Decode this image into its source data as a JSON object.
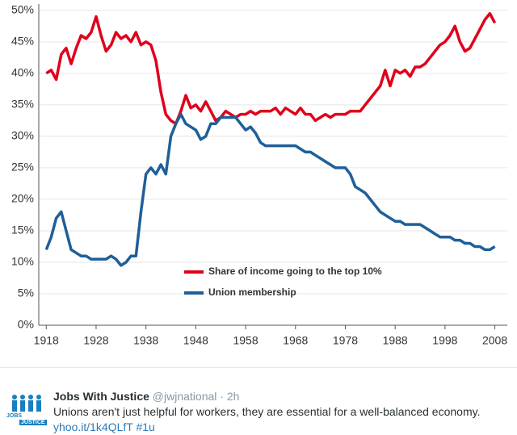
{
  "chart_data": {
    "type": "line",
    "x": [
      1918,
      1919,
      1920,
      1921,
      1922,
      1923,
      1924,
      1925,
      1926,
      1927,
      1928,
      1929,
      1930,
      1931,
      1932,
      1933,
      1934,
      1935,
      1936,
      1937,
      1938,
      1939,
      1940,
      1941,
      1942,
      1943,
      1944,
      1945,
      1946,
      1947,
      1948,
      1949,
      1950,
      1951,
      1952,
      1953,
      1954,
      1955,
      1956,
      1957,
      1958,
      1959,
      1960,
      1961,
      1962,
      1963,
      1964,
      1965,
      1966,
      1967,
      1968,
      1969,
      1970,
      1971,
      1972,
      1973,
      1974,
      1975,
      1976,
      1977,
      1978,
      1979,
      1980,
      1981,
      1982,
      1983,
      1984,
      1985,
      1986,
      1987,
      1988,
      1989,
      1990,
      1991,
      1992,
      1993,
      1994,
      1995,
      1996,
      1997,
      1998,
      1999,
      2000,
      2001,
      2002,
      2003,
      2004,
      2005,
      2006,
      2007,
      2008
    ],
    "series": [
      {
        "name": "Share of income going to the top 10%",
        "color": "#e0001b",
        "values": [
          40,
          40.5,
          39,
          43,
          44,
          41.5,
          44,
          46,
          45.5,
          46.5,
          49,
          46,
          43.5,
          44.5,
          46.5,
          45.5,
          46,
          45,
          46.5,
          44.5,
          45,
          44.5,
          42,
          37,
          33.5,
          32.5,
          32,
          34,
          36.5,
          34.5,
          35,
          34,
          35.5,
          34,
          32.5,
          33,
          34,
          33.5,
          33,
          33.5,
          33.5,
          34,
          33.5,
          34,
          34,
          34,
          34.5,
          33.5,
          34.5,
          34,
          33.5,
          34.5,
          33.5,
          33.5,
          32.5,
          33,
          33.5,
          33,
          33.5,
          33.5,
          33.5,
          34,
          34,
          34,
          35,
          36,
          37,
          38,
          40.5,
          38,
          40.5,
          40,
          40.5,
          39.5,
          41,
          41,
          41.5,
          42.5,
          43.5,
          44.5,
          45,
          46,
          47.5,
          45,
          43.5,
          44,
          45.5,
          47,
          48.5,
          49.5,
          48
        ]
      },
      {
        "name": "Union membership",
        "color": "#1f5f99",
        "values": [
          12,
          14,
          17,
          18,
          15,
          12,
          11.5,
          11,
          11,
          10.5,
          10.5,
          10.5,
          10.5,
          11,
          10.5,
          9.5,
          10,
          11,
          11,
          18,
          24,
          25,
          24,
          25.5,
          24,
          30,
          32,
          33.5,
          32,
          31.5,
          31,
          29.5,
          30,
          32,
          32,
          33,
          33,
          33,
          33,
          32,
          31,
          31.5,
          30.5,
          29,
          28.5,
          28.5,
          28.5,
          28.5,
          28.5,
          28.5,
          28.5,
          28,
          27.5,
          27.5,
          27,
          26.5,
          26,
          25.5,
          25,
          25,
          25,
          24,
          22,
          21.5,
          21,
          20,
          19,
          18,
          17.5,
          17,
          16.5,
          16.5,
          16,
          16,
          16,
          16,
          15.5,
          15,
          14.5,
          14,
          14,
          14,
          13.5,
          13.5,
          13,
          13,
          12.5,
          12.5,
          12,
          12,
          12.5
        ]
      }
    ],
    "xlim": [
      1916.5,
      2010.5
    ],
    "xticks": [
      1918,
      1928,
      1938,
      1948,
      1958,
      1968,
      1978,
      1988,
      1998,
      2008
    ],
    "ylim": [
      0,
      51
    ],
    "yticks": [
      {
        "value": 0,
        "label": "0%"
      },
      {
        "value": 5,
        "label": "5%"
      },
      {
        "value": 10,
        "label": "10%"
      },
      {
        "value": 15,
        "label": "15%"
      },
      {
        "value": 20,
        "label": "20%"
      },
      {
        "value": 25,
        "label": "25%"
      },
      {
        "value": 30,
        "label": "30%"
      },
      {
        "value": 35,
        "label": "35%"
      },
      {
        "value": 40,
        "label": "40%"
      },
      {
        "value": 45,
        "label": "45%"
      },
      {
        "value": 50,
        "label": "50%"
      }
    ],
    "grid": true,
    "legend": "center"
  },
  "tweet": {
    "author": "Jobs With Justice",
    "meta": "@jwjnational · 2h",
    "text": "Unions aren't just helpful for workers, they are essential for a well-balanced economy.",
    "link": "yhoo.it/1k4QLfT",
    "hashtag": "#1u",
    "avatar_top": "JOBS",
    "avatar_bottom": "JUSTICE"
  }
}
